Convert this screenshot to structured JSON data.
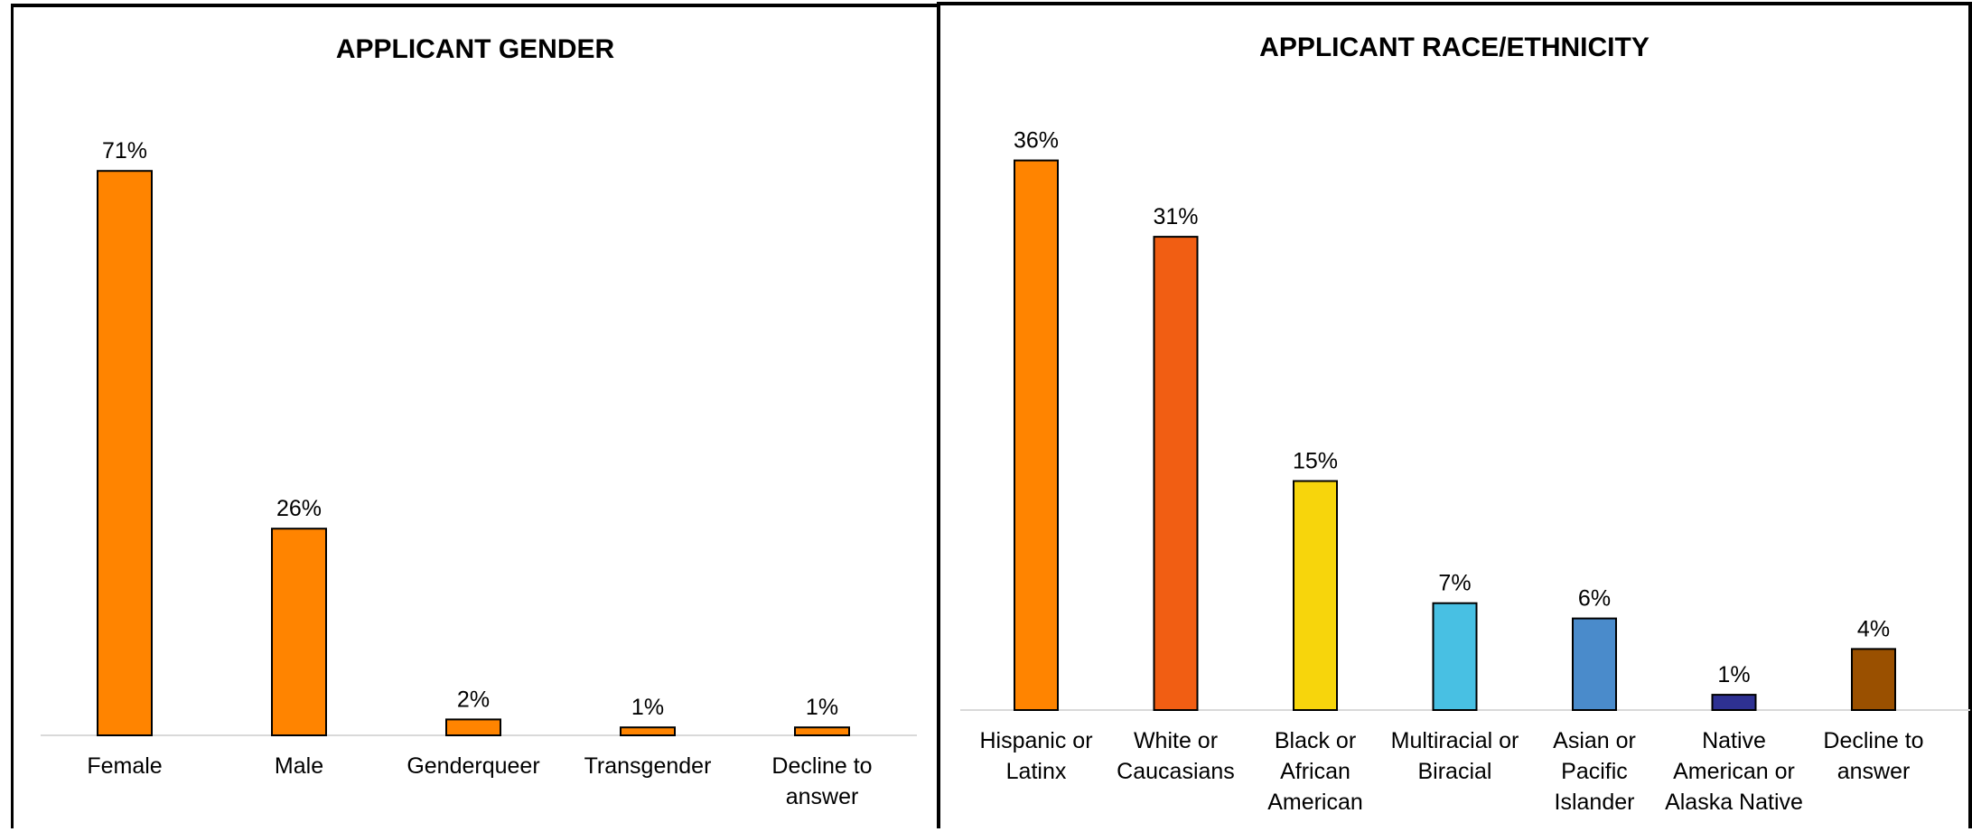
{
  "chart_data": [
    {
      "type": "bar",
      "title": "APPLICANT GENDER",
      "categories": [
        "Female",
        "Male",
        "Genderqueer",
        "Transgender",
        "Decline to answer"
      ],
      "category_lines": [
        [
          "Female"
        ],
        [
          "Male"
        ],
        [
          "Genderqueer"
        ],
        [
          "Transgender"
        ],
        [
          "Decline to",
          "answer"
        ]
      ],
      "values": [
        71,
        26,
        2,
        1,
        1
      ],
      "value_labels": [
        "71%",
        "26%",
        "2%",
        "1%",
        "1%"
      ],
      "colors": [
        "#FF8400",
        "#FF8400",
        "#FF8400",
        "#FF8400",
        "#FF8400"
      ],
      "unit": "%",
      "grid": false,
      "legend": "none"
    },
    {
      "type": "bar",
      "title": "APPLICANT RACE/ETHNICITY",
      "categories": [
        "Hispanic or Latinx",
        "White or Caucasians",
        "Black or African American",
        "Multiracial or Biracial",
        "Asian or Pacific Islander",
        "Native American or Alaska Native",
        "Decline to answer"
      ],
      "category_lines": [
        [
          "Hispanic or",
          "Latinx"
        ],
        [
          "White or",
          "Caucasians"
        ],
        [
          "Black  or",
          "African",
          "American"
        ],
        [
          "Multiracial or",
          "Biracial"
        ],
        [
          "Asian or",
          "Pacific",
          "Islander"
        ],
        [
          "Native",
          "American or",
          "Alaska Native"
        ],
        [
          "Decline to",
          "answer"
        ]
      ],
      "values": [
        36,
        31,
        15,
        7,
        6,
        1,
        4
      ],
      "value_labels": [
        "36%",
        "31%",
        "15%",
        "7%",
        "6%",
        "1%",
        "4%"
      ],
      "colors": [
        "#FF8400",
        "#F15E13",
        "#F7D50C",
        "#48C0E3",
        "#4A8BCB",
        "#2E3192",
        "#9A5000"
      ],
      "unit": "%",
      "grid": false,
      "legend": "none"
    }
  ]
}
